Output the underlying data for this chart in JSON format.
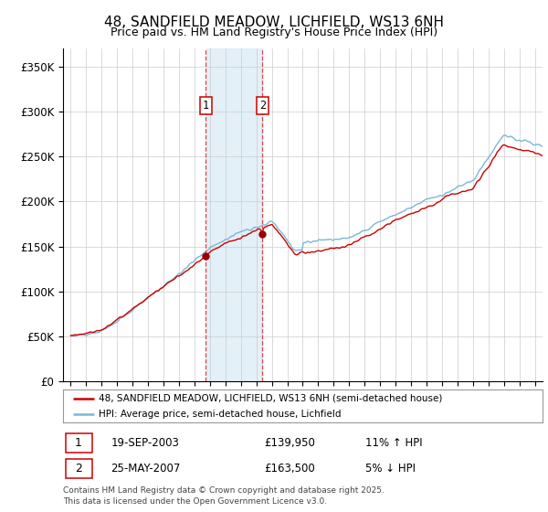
{
  "title": "48, SANDFIELD MEADOW, LICHFIELD, WS13 6NH",
  "subtitle": "Price paid vs. HM Land Registry's House Price Index (HPI)",
  "legend_line1": "48, SANDFIELD MEADOW, LICHFIELD, WS13 6NH (semi-detached house)",
  "legend_line2": "HPI: Average price, semi-detached house, Lichfield",
  "transaction1_date": "19-SEP-2003",
  "transaction1_price": "£139,950",
  "transaction1_hpi": "11% ↑ HPI",
  "transaction2_date": "25-MAY-2007",
  "transaction2_price": "£163,500",
  "transaction2_hpi": "5% ↓ HPI",
  "footer": "Contains HM Land Registry data © Crown copyright and database right 2025.\nThis data is licensed under the Open Government Licence v3.0.",
  "sale1_date": 2003.72,
  "sale1_price": 139950,
  "sale2_date": 2007.39,
  "sale2_price": 163500,
  "ylim_min": 0,
  "ylim_max": 370000,
  "xlim_min": 1994.5,
  "xlim_max": 2025.5,
  "line_color_red": "#cc0000",
  "line_color_blue": "#7ab8d4",
  "shading_color": "#d8eaf5",
  "grid_color": "#cccccc",
  "bg_color": "#ffffff",
  "marker_color_red": "#990000",
  "dashed_color": "#dd4444",
  "title_fontsize": 11,
  "subtitle_fontsize": 9
}
